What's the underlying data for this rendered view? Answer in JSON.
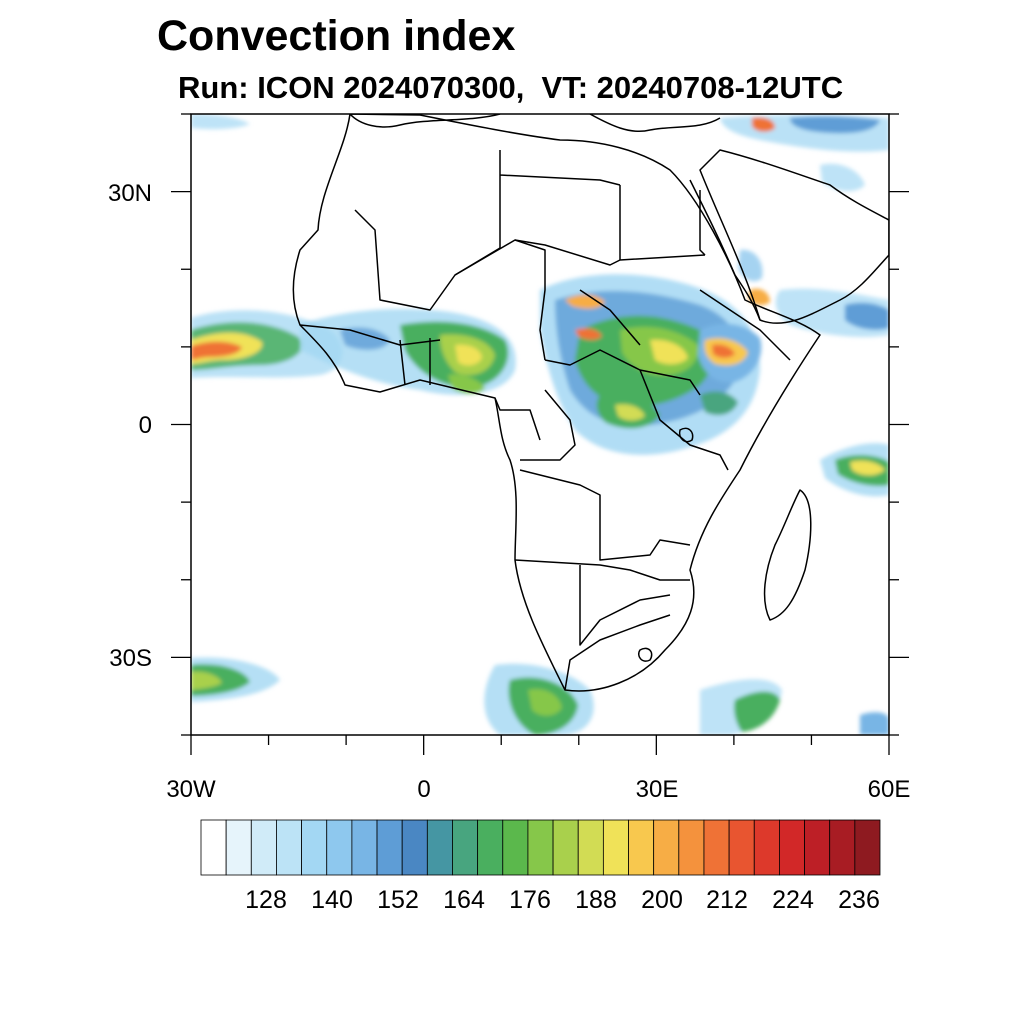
{
  "title": "Convection index",
  "subtitle": "Run: ICON 2024070300,  VT: 20240708-12UTC",
  "map": {
    "type": "filled contour map",
    "lon_range": [
      -30,
      60
    ],
    "lat_range": [
      -40,
      40
    ],
    "y_tick_labels": [
      {
        "lat": 30,
        "label": "30N"
      },
      {
        "lat": 0,
        "label": "0"
      },
      {
        "lat": -30,
        "label": "30S"
      }
    ],
    "x_tick_labels": [
      {
        "lon": -30,
        "label": "30W"
      },
      {
        "lon": 0,
        "label": "0"
      },
      {
        "lon": 30,
        "label": "30E"
      },
      {
        "lon": 60,
        "label": "60E"
      }
    ],
    "coastline_color": "#000000"
  },
  "colorbar": {
    "colors": [
      "#ffffff",
      "#e6f4fb",
      "#d0ebf8",
      "#bce3f6",
      "#a3d7f3",
      "#8ec8ee",
      "#78b5e5",
      "#5e9dd6",
      "#4a87c3",
      "#4596a3",
      "#48a57f",
      "#4aaf5f",
      "#5bb84c",
      "#86c74a",
      "#a9d04c",
      "#d2dc54",
      "#f0e258",
      "#f8c84e",
      "#f7ad45",
      "#f4923d",
      "#ef7236",
      "#e85530",
      "#dd392b",
      "#d22828",
      "#bd1f26",
      "#a81c23",
      "#8e1a20"
    ],
    "tick_labels": [
      "128",
      "140",
      "152",
      "164",
      "176",
      "188",
      "200",
      "212",
      "224",
      "236"
    ]
  }
}
